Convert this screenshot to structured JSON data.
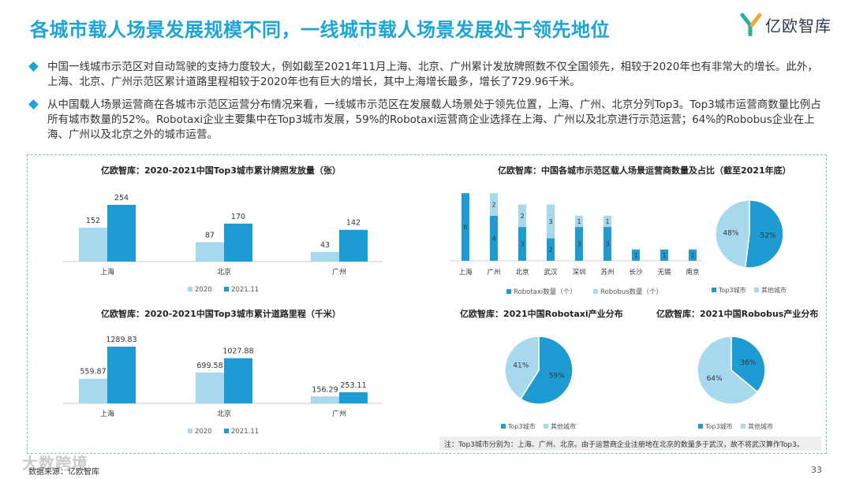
{
  "page": {
    "title": "各城市载人场景发展规模不同，一线城市载人场景发展处于领先地位",
    "brand": "亿欧智库",
    "paragraphs": [
      "中国一线城市示范区对自动驾驶的支持力度较大，例如截至2021年11月上海、北京、广州累计发放牌照数不仅全国领先，相较于2020年也有非常大的增长。此外，上海、北京、广州示范区累计道路里程相较于2020年也有巨大的增长，其中上海增长最多，增长了729.96千米。",
      "从中国载人场景运营商在各城市示范区运营分布情况来看，一线城市示范区在发展载人场景处于领先位置，上海、广州、北京分列Top3。Top3城市运营商数量比例占所有城市数量的52%。Robotaxi企业主要集中在Top3城市发展，59%的Robotaxi运营商企业选择在上海、广州以及北京进行示范运营；64%的Robobus企业在上海、广州以及北京之外的城市运营。"
    ],
    "note": "注：Top3城市分别为：上海、广州、北京。由于运营商企业注册地在北京的数量多于武汉，故不将武汉算作Top3。",
    "source": "数据来源：亿欧智库",
    "page_number": "33",
    "watermark": "大数跨境"
  },
  "colors": {
    "light_blue": "#a8d8ee",
    "dark_blue": "#1f9bd3",
    "title_blue": "#1ba4d8"
  },
  "chart_data": [
    {
      "id": "licenses",
      "type": "bar",
      "title": "亿欧智库：2020-2021中国Top3城市累计牌照发放量（张）",
      "categories": [
        "上海",
        "北京",
        "广州"
      ],
      "series": [
        {
          "name": "2020",
          "values": [
            152,
            87,
            43
          ]
        },
        {
          "name": "2021.11",
          "values": [
            254,
            170,
            142
          ]
        }
      ],
      "ylim": [
        0,
        254
      ]
    },
    {
      "id": "mileage",
      "type": "bar",
      "title": "亿欧智库：2020-2021中国Top3城市累计道路里程（千米）",
      "categories": [
        "上海",
        "北京",
        "广州"
      ],
      "series": [
        {
          "name": "2020",
          "values": [
            559.87,
            699.58,
            156.29
          ]
        },
        {
          "name": "2021.11",
          "values": [
            1289.83,
            1027.88,
            253.11
          ]
        }
      ],
      "ylim": [
        0,
        1289.83
      ]
    },
    {
      "id": "operators",
      "type": "bar",
      "stacked": true,
      "title": "亿欧智库：中国各城市示范区载人场景运营商数量及占比（截至2021年底）",
      "categories": [
        "上海",
        "广州",
        "北京",
        "武汉",
        "深圳",
        "苏州",
        "长沙",
        "无锡",
        "南京"
      ],
      "series": [
        {
          "name": "Robotaxi数量（个）",
          "values": [
            6,
            4,
            3,
            2,
            3,
            3,
            1,
            1,
            1
          ]
        },
        {
          "name": "Robobus数量（个）",
          "values": [
            0,
            2,
            2,
            3,
            1,
            1,
            0,
            0,
            0
          ]
        }
      ],
      "ylim": [
        0,
        6
      ]
    },
    {
      "id": "operator_share",
      "type": "pie",
      "labels": [
        "Top3城市",
        "其他城市"
      ],
      "values": [
        52,
        48
      ]
    },
    {
      "id": "robotaxi_share",
      "type": "pie",
      "title": "亿欧智库：2021中国Robotaxi产业分布",
      "labels": [
        "Top3城市",
        "其他城市"
      ],
      "values": [
        59,
        41
      ]
    },
    {
      "id": "robobus_share",
      "type": "pie",
      "title": "亿欧智库：2021中国Robobus产业分布",
      "labels": [
        "Top3城市",
        "其他城市"
      ],
      "values": [
        36,
        64
      ]
    }
  ]
}
